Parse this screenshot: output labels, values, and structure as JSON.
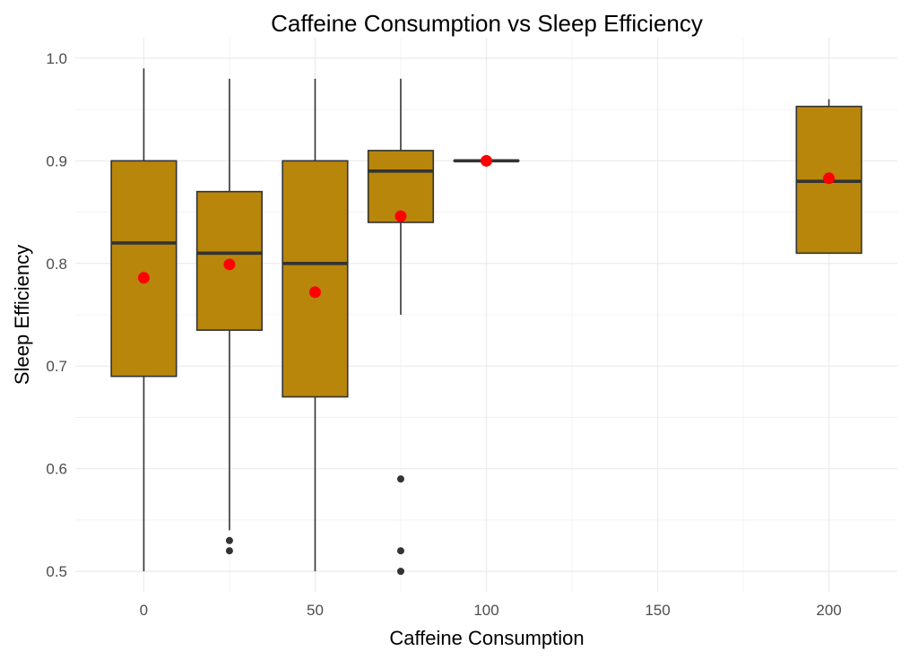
{
  "chart_data": {
    "type": "box",
    "title": "Caffeine Consumption vs Sleep Efficiency",
    "xlabel": "Caffeine Consumption",
    "ylabel": "Sleep Efficiency",
    "xlim": [
      -20,
      220
    ],
    "ylim": [
      0.48,
      1.02
    ],
    "x_ticks": [
      0,
      50,
      100,
      150,
      200
    ],
    "x_tick_labels": [
      "0",
      "50",
      "100",
      "150",
      "200"
    ],
    "y_ticks": [
      0.5,
      0.6,
      0.7,
      0.8,
      0.9,
      1.0
    ],
    "y_tick_labels": [
      "0.5",
      "0.6",
      "0.7",
      "0.8",
      "0.9",
      "1.0"
    ],
    "grid": true,
    "box_width": 19,
    "colors": {
      "box_fill": "#b8860b",
      "box_stroke": "#333333",
      "mean_marker": "#ff0000",
      "outlier": "#333333",
      "grid": "#ebebeb"
    },
    "boxes": [
      {
        "x": 0,
        "whisker_low": 0.5,
        "q1": 0.69,
        "median": 0.82,
        "q3": 0.9,
        "whisker_high": 0.99,
        "mean": 0.786,
        "outliers": []
      },
      {
        "x": 25,
        "whisker_low": 0.54,
        "q1": 0.735,
        "median": 0.81,
        "q3": 0.87,
        "whisker_high": 0.98,
        "mean": 0.799,
        "outliers": [
          0.52,
          0.53
        ]
      },
      {
        "x": 50,
        "whisker_low": 0.5,
        "q1": 0.67,
        "median": 0.8,
        "q3": 0.9,
        "whisker_high": 0.98,
        "mean": 0.772,
        "outliers": []
      },
      {
        "x": 75,
        "whisker_low": 0.75,
        "q1": 0.84,
        "median": 0.89,
        "q3": 0.91,
        "whisker_high": 0.98,
        "mean": 0.846,
        "outliers": [
          0.5,
          0.52,
          0.59
        ]
      },
      {
        "x": 100,
        "whisker_low": 0.9,
        "q1": 0.9,
        "median": 0.9,
        "q3": 0.9,
        "whisker_high": 0.9,
        "mean": 0.9,
        "outliers": []
      },
      {
        "x": 200,
        "whisker_low": 0.81,
        "q1": 0.81,
        "median": 0.88,
        "q3": 0.953,
        "whisker_high": 0.96,
        "mean": 0.883,
        "outliers": []
      }
    ]
  }
}
